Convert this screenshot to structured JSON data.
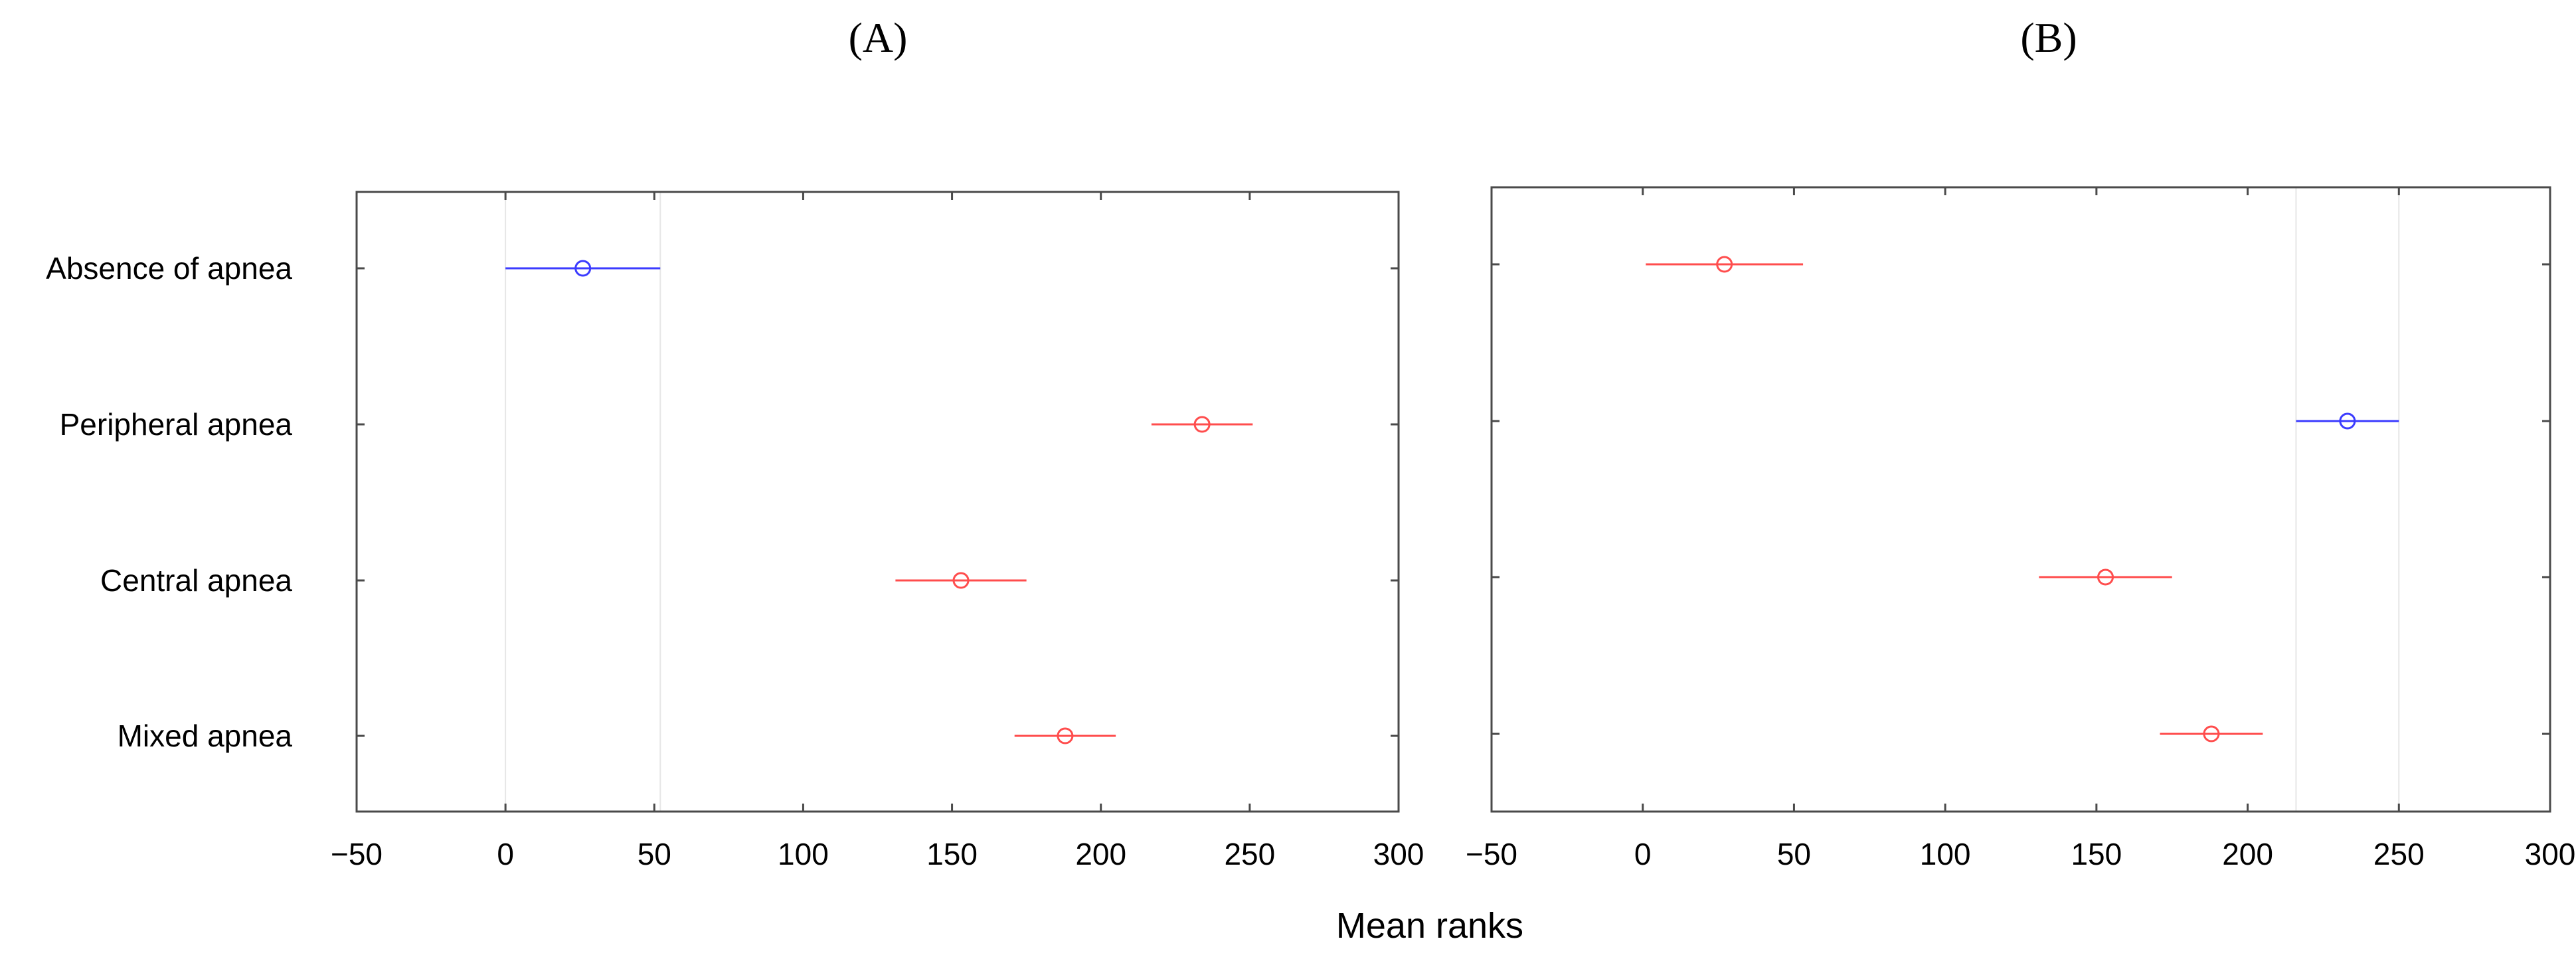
{
  "chart_data": [
    {
      "type": "scatter",
      "panel_label": "(A)",
      "title": "",
      "xlabel": "Mean ranks",
      "ylabel": "",
      "xlim": [
        -50,
        300
      ],
      "x_ticks": [
        "−50",
        "0",
        "50",
        "100",
        "150",
        "200",
        "250",
        "300"
      ],
      "x_tick_values": [
        -50,
        0,
        50,
        100,
        150,
        200,
        250,
        300
      ],
      "categories": [
        "Absence of apnea",
        "Peripheral apnea",
        "Central apnea",
        "Mixed apnea"
      ],
      "points": [
        {
          "category": "Absence of apnea",
          "mean": 26,
          "low": 0,
          "high": 52,
          "color": "#3b3bff"
        },
        {
          "category": "Peripheral apnea",
          "mean": 234,
          "low": 217,
          "high": 251,
          "color": "#ff4d4d"
        },
        {
          "category": "Central apnea",
          "mean": 153,
          "low": 131,
          "high": 175,
          "color": "#ff4d4d"
        },
        {
          "category": "Mixed apnea",
          "mean": 188,
          "low": 171,
          "high": 205,
          "color": "#ff4d4d"
        }
      ],
      "reference_band": [
        0,
        52
      ],
      "show_category_labels": true
    },
    {
      "type": "scatter",
      "panel_label": "(B)",
      "title": "",
      "xlabel": "Mean ranks",
      "ylabel": "",
      "xlim": [
        -50,
        300
      ],
      "x_ticks": [
        "−50",
        "0",
        "50",
        "100",
        "150",
        "200",
        "250",
        "300"
      ],
      "x_tick_values": [
        -50,
        0,
        50,
        100,
        150,
        200,
        250,
        300
      ],
      "categories": [
        "Absence of apnea",
        "Peripheral apnea",
        "Central apnea",
        "Mixed apnea"
      ],
      "points": [
        {
          "category": "Absence of apnea",
          "mean": 27,
          "low": 1,
          "high": 53,
          "color": "#ff4d4d"
        },
        {
          "category": "Peripheral apnea",
          "mean": 233,
          "low": 216,
          "high": 250,
          "color": "#3b3bff"
        },
        {
          "category": "Central apnea",
          "mean": 153,
          "low": 131,
          "high": 175,
          "color": "#ff4d4d"
        },
        {
          "category": "Mixed apnea",
          "mean": 188,
          "low": 171,
          "high": 205,
          "color": "#ff4d4d"
        }
      ],
      "reference_band": [
        216,
        250
      ],
      "show_category_labels": false
    }
  ],
  "shared_xlabel": "Mean ranks"
}
